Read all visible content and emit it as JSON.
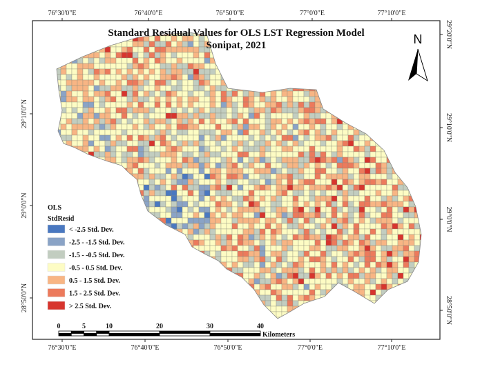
{
  "title": "Standard Residual Values for OLS LST Regression Model",
  "subtitle": "Sonipat, 2021",
  "north_arrow": {
    "label": "N",
    "icon": "north-arrow-icon"
  },
  "top_ticks": [
    "76°30'0\"E",
    "76°40'0\"E",
    "76°50'0\"E",
    "77°0'0\"E",
    "77°10'0\"E"
  ],
  "bottom_ticks": [
    "76°30'0\"E",
    "76°40'0\"E",
    "76°50'0\"E",
    "77°0'0\"E",
    "77°10'0\"E"
  ],
  "left_ticks": [
    "29°10'0\"N",
    "29°0'0\"N",
    "28°50'0\"N"
  ],
  "right_ticks": [
    "29°20'0\"N",
    "29°10'0\"N",
    "29°0'0\"N",
    "28°50'0\"N"
  ],
  "legend": {
    "title": "OLS",
    "field": "StdResid",
    "classes": [
      {
        "label": "< -2.5 Std. Dev.",
        "color": "#4a78c0"
      },
      {
        "label": "-2.5 - -1.5 Std. Dev.",
        "color": "#8aa3c6"
      },
      {
        "label": "-1.5 - -0.5 Std. Dev.",
        "color": "#c2cdc0"
      },
      {
        "label": "-0.5 - 0.5 Std. Dev.",
        "color": "#fdfcc4"
      },
      {
        "label": "0.5 - 1.5 Std. Dev.",
        "color": "#f8b584"
      },
      {
        "label": "1.5 - 2.5 Std. Dev.",
        "color": "#ec7a5c"
      },
      {
        "label": "> 2.5 Std. Dev.",
        "color": "#d7352e"
      }
    ]
  },
  "scale_bar": {
    "ticks": [
      "0",
      "5",
      "10",
      "20",
      "30",
      "40"
    ],
    "unit": "Kilometers"
  }
}
